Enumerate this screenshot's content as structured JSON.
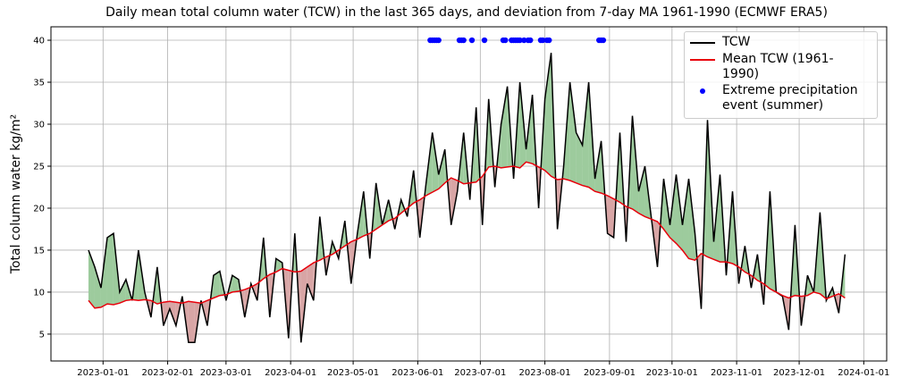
{
  "chart_data": {
    "type": "line",
    "title": "Daily mean total column water (TCW) in the last 365 days, and deviation from 7-day MA 1961-1990 (ECMWF ERA5)",
    "y_label": "Total column water kg/m²",
    "x": [
      "2022-12-25",
      "2022-12-28",
      "2022-12-31",
      "2023-01-03",
      "2023-01-06",
      "2023-01-09",
      "2023-01-12",
      "2023-01-15",
      "2023-01-18",
      "2023-01-21",
      "2023-01-24",
      "2023-01-27",
      "2023-01-30",
      "2023-02-02",
      "2023-02-05",
      "2023-02-08",
      "2023-02-11",
      "2023-02-14",
      "2023-02-17",
      "2023-02-20",
      "2023-02-23",
      "2023-02-26",
      "2023-03-01",
      "2023-03-04",
      "2023-03-07",
      "2023-03-10",
      "2023-03-13",
      "2023-03-16",
      "2023-03-19",
      "2023-03-22",
      "2023-03-25",
      "2023-03-28",
      "2023-03-31",
      "2023-04-03",
      "2023-04-06",
      "2023-04-09",
      "2023-04-12",
      "2023-04-15",
      "2023-04-18",
      "2023-04-21",
      "2023-04-24",
      "2023-04-27",
      "2023-04-30",
      "2023-05-03",
      "2023-05-06",
      "2023-05-09",
      "2023-05-12",
      "2023-05-15",
      "2023-05-18",
      "2023-05-21",
      "2023-05-24",
      "2023-05-27",
      "2023-05-30",
      "2023-06-02",
      "2023-06-05",
      "2023-06-08",
      "2023-06-11",
      "2023-06-14",
      "2023-06-17",
      "2023-06-20",
      "2023-06-23",
      "2023-06-26",
      "2023-06-29",
      "2023-07-02",
      "2023-07-05",
      "2023-07-08",
      "2023-07-11",
      "2023-07-14",
      "2023-07-17",
      "2023-07-20",
      "2023-07-23",
      "2023-07-26",
      "2023-07-29",
      "2023-08-01",
      "2023-08-04",
      "2023-08-07",
      "2023-08-10",
      "2023-08-13",
      "2023-08-16",
      "2023-08-19",
      "2023-08-22",
      "2023-08-25",
      "2023-08-28",
      "2023-08-31",
      "2023-09-03",
      "2023-09-06",
      "2023-09-09",
      "2023-09-12",
      "2023-09-15",
      "2023-09-18",
      "2023-09-21",
      "2023-09-24",
      "2023-09-27",
      "2023-09-30",
      "2023-10-03",
      "2023-10-06",
      "2023-10-09",
      "2023-10-12",
      "2023-10-15",
      "2023-10-18",
      "2023-10-21",
      "2023-10-24",
      "2023-10-27",
      "2023-10-30",
      "2023-11-02",
      "2023-11-05",
      "2023-11-08",
      "2023-11-11",
      "2023-11-14",
      "2023-11-17",
      "2023-11-20",
      "2023-11-23",
      "2023-11-26",
      "2023-11-29",
      "2023-12-02",
      "2023-12-05",
      "2023-12-08",
      "2023-12-11",
      "2023-12-14",
      "2023-12-17",
      "2023-12-20",
      "2023-12-23"
    ],
    "series": [
      {
        "name": "TCW",
        "type": "line",
        "color": "#000000",
        "values": [
          15,
          13,
          10.5,
          16.5,
          17,
          10,
          11.5,
          9,
          15,
          10,
          7,
          13,
          6,
          8,
          6,
          9.5,
          4,
          4,
          9,
          6,
          12,
          12.5,
          9,
          12,
          11.5,
          7,
          11,
          9,
          16.5,
          7,
          14,
          13.5,
          4.5,
          17,
          4,
          11,
          9,
          19,
          12,
          16,
          14,
          18.5,
          11,
          17,
          22,
          14,
          23,
          18,
          21,
          17.5,
          21,
          19,
          24.5,
          16.5,
          23,
          29,
          24,
          27,
          18,
          22,
          29,
          21,
          32,
          18,
          33,
          22.5,
          30,
          34.5,
          23.5,
          35,
          27,
          33.5,
          20,
          33,
          38.5,
          17.5,
          25,
          35,
          29,
          27.5,
          35,
          23.5,
          28,
          17,
          16.5,
          29,
          16,
          31,
          22,
          25,
          19,
          13,
          23.5,
          18,
          24,
          18,
          23.5,
          17,
          8,
          30.5,
          16,
          24,
          12,
          22,
          11,
          15.5,
          10.5,
          14.5,
          8.5,
          22,
          10,
          9.5,
          5.5,
          18,
          6,
          12,
          10,
          19.5,
          9,
          10.5,
          7.5,
          14.5
        ]
      },
      {
        "name": "Mean TCW (1961-1990)",
        "type": "line",
        "color": "#e8000b",
        "values": [
          9,
          8.1,
          8.2,
          8.6,
          8.5,
          8.7,
          9.0,
          9.1,
          9.0,
          9.1,
          9.0,
          8.6,
          8.8,
          8.9,
          8.8,
          8.7,
          8.9,
          8.8,
          8.7,
          9.0,
          9.3,
          9.6,
          9.7,
          10.0,
          10.1,
          10.3,
          10.6,
          11.0,
          11.6,
          12.1,
          12.4,
          12.8,
          12.6,
          12.4,
          12.5,
          13.0,
          13.5,
          13.8,
          14.2,
          14.5,
          15.0,
          15.5,
          16.0,
          16.3,
          16.7,
          17.0,
          17.5,
          18.0,
          18.5,
          18.8,
          19.4,
          20.0,
          20.6,
          21.0,
          21.5,
          21.9,
          22.3,
          23.0,
          23.6,
          23.3,
          22.9,
          23.0,
          23.1,
          23.8,
          24.9,
          25.0,
          24.8,
          24.9,
          25.0,
          24.8,
          25.5,
          25.3,
          24.9,
          24.5,
          23.8,
          23.4,
          23.5,
          23.3,
          23.0,
          22.7,
          22.5,
          22.0,
          21.8,
          21.5,
          21.1,
          20.7,
          20.2,
          19.9,
          19.4,
          19.0,
          18.7,
          18.4,
          17.5,
          16.5,
          15.8,
          15.0,
          14.0,
          13.8,
          14.6,
          14.2,
          13.9,
          13.6,
          13.6,
          13.4,
          13.0,
          12.4,
          12.0,
          11.4,
          11.0,
          10.4,
          10.0,
          9.6,
          9.3,
          9.6,
          9.5,
          9.6,
          10.0,
          9.8,
          9.2,
          9.5,
          9.8,
          9.3
        ]
      },
      {
        "name": "Extreme precipitation event (summer)",
        "type": "scatter",
        "color": "#0000ff",
        "x": [
          "2023-06-07",
          "2023-06-08",
          "2023-06-09",
          "2023-06-10",
          "2023-06-11",
          "2023-06-21",
          "2023-06-22",
          "2023-06-23",
          "2023-06-27",
          "2023-07-03",
          "2023-07-12",
          "2023-07-13",
          "2023-07-16",
          "2023-07-17",
          "2023-07-18",
          "2023-07-19",
          "2023-07-20",
          "2023-07-22",
          "2023-07-24",
          "2023-07-25",
          "2023-07-30",
          "2023-07-31",
          "2023-08-02",
          "2023-08-03",
          "2023-08-27",
          "2023-08-28",
          "2023-08-29"
        ],
        "values": [
          40,
          40,
          40,
          40,
          40,
          40,
          40,
          40,
          40,
          40,
          40,
          40,
          40,
          40,
          40,
          40,
          40,
          40,
          40,
          40,
          40,
          40,
          40,
          40,
          40,
          40,
          40
        ]
      }
    ],
    "fill_above_color": "#9dcb9d",
    "fill_below_color": "#d8a5a5",
    "xlim": [
      "2022-12-07",
      "2024-01-12"
    ],
    "xticks": [
      "2023-01-01",
      "2023-02-01",
      "2023-03-01",
      "2023-04-01",
      "2023-05-01",
      "2023-06-01",
      "2023-07-01",
      "2023-08-01",
      "2023-09-01",
      "2023-10-01",
      "2023-11-01",
      "2023-12-01",
      "2024-01-01"
    ],
    "ylim": [
      1.8,
      41.6
    ],
    "yticks": [
      5,
      10,
      15,
      20,
      25,
      30,
      35,
      40
    ],
    "grid": true,
    "legend": "upper right"
  }
}
